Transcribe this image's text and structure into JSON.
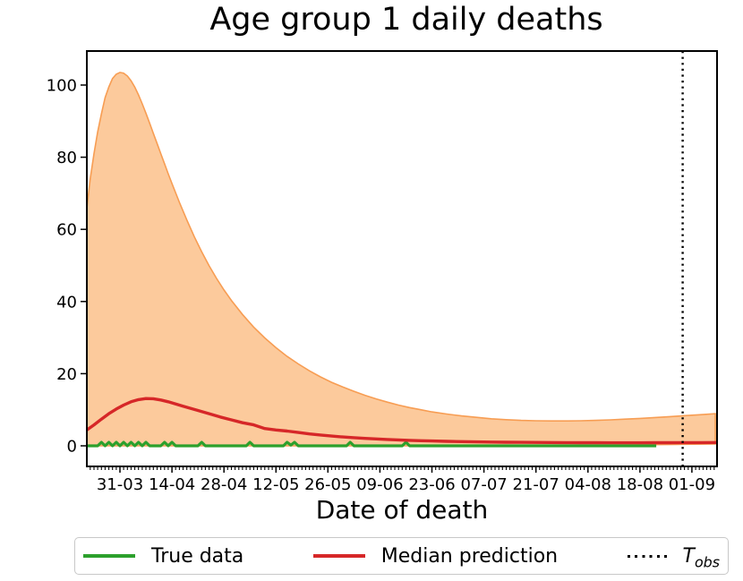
{
  "legend": {
    "items": [
      {
        "label": "True data",
        "color": "#2ca02c",
        "marker": "solid-line"
      },
      {
        "label": "Median prediction",
        "color": "#d62728",
        "marker": "solid-line"
      },
      {
        "label_main": "T",
        "label_sub": "obs",
        "color": "#000000",
        "marker": "dotted-line"
      }
    ]
  },
  "chart_data": {
    "type": "line",
    "title": "Age group 1 daily deaths",
    "xlabel": "Date of death",
    "ylabel": "",
    "x_unit": "days since 31-03",
    "x_range": [
      -8.9,
      160.8
    ],
    "ylim": [
      -5.7,
      109.4
    ],
    "yticks": [
      0,
      20,
      40,
      60,
      80,
      100
    ],
    "xticks": {
      "days": [
        0,
        14,
        28,
        42,
        56,
        70,
        84,
        98,
        112,
        126,
        140,
        154
      ],
      "labels": [
        "31-03",
        "14-04",
        "28-04",
        "12-05",
        "26-05",
        "09-06",
        "23-06",
        "07-07",
        "21-07",
        "04-08",
        "18-08",
        "01-09"
      ]
    },
    "minor_tick_step_days": 1,
    "grid": false,
    "legend_position": "below",
    "t_obs_day": 151.5,
    "band": {
      "name": "prediction interval",
      "fill_color": "#fcca9c",
      "edge_color": "#f79d53",
      "upper": [
        [
          -8.9,
          66
        ],
        [
          -8,
          74
        ],
        [
          -7,
          81
        ],
        [
          -6,
          87
        ],
        [
          -5,
          92
        ],
        [
          -4,
          96.5
        ],
        [
          -3,
          99.5
        ],
        [
          -2,
          101.8
        ],
        [
          -1,
          103
        ],
        [
          0,
          103.5
        ],
        [
          1,
          103.3
        ],
        [
          2,
          102.5
        ],
        [
          3,
          101.2
        ],
        [
          4,
          99.4
        ],
        [
          5,
          97.3
        ],
        [
          6,
          94.8
        ],
        [
          7,
          92.2
        ],
        [
          8,
          89.4
        ],
        [
          9,
          86.6
        ],
        [
          10,
          83.8
        ],
        [
          11,
          81
        ],
        [
          12,
          78.2
        ],
        [
          13,
          75.4
        ],
        [
          14,
          72.7
        ],
        [
          16,
          67.5
        ],
        [
          18,
          62.6
        ],
        [
          20,
          58
        ],
        [
          22,
          53.8
        ],
        [
          24,
          49.9
        ],
        [
          26,
          46.4
        ],
        [
          28,
          43.2
        ],
        [
          30,
          40.3
        ],
        [
          33,
          36.4
        ],
        [
          36,
          32.9
        ],
        [
          39,
          29.9
        ],
        [
          42,
          27.2
        ],
        [
          45,
          24.8
        ],
        [
          48,
          22.7
        ],
        [
          51,
          20.8
        ],
        [
          54,
          19.1
        ],
        [
          57,
          17.6
        ],
        [
          60,
          16.3
        ],
        [
          63,
          15.1
        ],
        [
          66,
          14
        ],
        [
          69,
          13
        ],
        [
          72,
          12.1
        ],
        [
          75,
          11.3
        ],
        [
          78,
          10.6
        ],
        [
          81,
          10
        ],
        [
          84,
          9.4
        ],
        [
          88,
          8.8
        ],
        [
          92,
          8.3
        ],
        [
          96,
          7.9
        ],
        [
          100,
          7.5
        ],
        [
          104,
          7.25
        ],
        [
          108,
          7.05
        ],
        [
          112,
          6.95
        ],
        [
          116,
          6.9
        ],
        [
          120,
          6.9
        ],
        [
          124,
          6.95
        ],
        [
          128,
          7.05
        ],
        [
          132,
          7.2
        ],
        [
          136,
          7.4
        ],
        [
          140,
          7.6
        ],
        [
          144,
          7.85
        ],
        [
          148,
          8.1
        ],
        [
          152,
          8.35
        ],
        [
          156,
          8.6
        ],
        [
          160.3,
          8.9
        ]
      ],
      "lower": [
        [
          -8.9,
          0
        ],
        [
          60,
          0
        ],
        [
          100,
          0
        ],
        [
          120,
          0.1
        ],
        [
          140,
          0.3
        ],
        [
          150,
          0.4
        ],
        [
          160.3,
          0.5
        ]
      ]
    },
    "series": [
      {
        "name": "True data",
        "color": "#2ca02c",
        "style": "solid",
        "points": [
          [
            -8.9,
            0
          ],
          [
            -6,
            0
          ],
          [
            -5,
            1
          ],
          [
            -4,
            0
          ],
          [
            -3,
            1
          ],
          [
            -2,
            0
          ],
          [
            -1,
            1
          ],
          [
            0,
            0
          ],
          [
            1,
            1
          ],
          [
            2,
            0
          ],
          [
            3,
            1
          ],
          [
            4,
            0
          ],
          [
            5,
            1
          ],
          [
            6,
            0
          ],
          [
            7,
            1
          ],
          [
            8,
            0
          ],
          [
            11,
            0
          ],
          [
            12,
            1
          ],
          [
            13,
            0
          ],
          [
            14,
            1
          ],
          [
            15,
            0
          ],
          [
            21,
            0
          ],
          [
            22,
            1
          ],
          [
            23,
            0
          ],
          [
            34,
            0
          ],
          [
            35,
            1
          ],
          [
            36,
            0
          ],
          [
            44,
            0
          ],
          [
            45,
            1
          ],
          [
            46,
            0.2
          ],
          [
            47,
            1
          ],
          [
            48,
            0
          ],
          [
            61,
            0
          ],
          [
            62,
            1
          ],
          [
            63,
            0
          ],
          [
            76,
            0
          ],
          [
            77,
            1
          ],
          [
            78,
            0
          ],
          [
            144.4,
            0
          ]
        ]
      },
      {
        "name": "Median prediction",
        "color": "#d62728",
        "style": "solid",
        "points": [
          [
            -8.9,
            4.4
          ],
          [
            -7,
            5.8
          ],
          [
            -5,
            7.4
          ],
          [
            -3,
            8.9
          ],
          [
            -1,
            10.2
          ],
          [
            1,
            11.3
          ],
          [
            3,
            12.2
          ],
          [
            5,
            12.8
          ],
          [
            7,
            13.1
          ],
          [
            9,
            13.05
          ],
          [
            11,
            12.7
          ],
          [
            13,
            12.2
          ],
          [
            15,
            11.6
          ],
          [
            17,
            11
          ],
          [
            19,
            10.4
          ],
          [
            21,
            9.8
          ],
          [
            24,
            8.9
          ],
          [
            27,
            8
          ],
          [
            30,
            7.2
          ],
          [
            33,
            6.4
          ],
          [
            36,
            5.8
          ],
          [
            39,
            4.8
          ],
          [
            42,
            4.4
          ],
          [
            45,
            4.1
          ],
          [
            48,
            3.7
          ],
          [
            51,
            3.3
          ],
          [
            54,
            3
          ],
          [
            57,
            2.7
          ],
          [
            60,
            2.45
          ],
          [
            63,
            2.25
          ],
          [
            66,
            2.05
          ],
          [
            69,
            1.9
          ],
          [
            72,
            1.75
          ],
          [
            75,
            1.63
          ],
          [
            78,
            1.52
          ],
          [
            81,
            1.42
          ],
          [
            84,
            1.34
          ],
          [
            88,
            1.25
          ],
          [
            92,
            1.17
          ],
          [
            96,
            1.1
          ],
          [
            100,
            1.05
          ],
          [
            104,
            1
          ],
          [
            108,
            0.97
          ],
          [
            112,
            0.94
          ],
          [
            116,
            0.91
          ],
          [
            120,
            0.89
          ],
          [
            124,
            0.87
          ],
          [
            128,
            0.86
          ],
          [
            132,
            0.85
          ],
          [
            136,
            0.85
          ],
          [
            140,
            0.85
          ],
          [
            144,
            0.86
          ],
          [
            148,
            0.87
          ],
          [
            152,
            0.89
          ],
          [
            156,
            0.9
          ],
          [
            160.8,
            0.92
          ]
        ]
      },
      {
        "name": "T_obs",
        "color": "#000000",
        "style": "dotted-vertical",
        "x_day": 151.5
      }
    ]
  }
}
